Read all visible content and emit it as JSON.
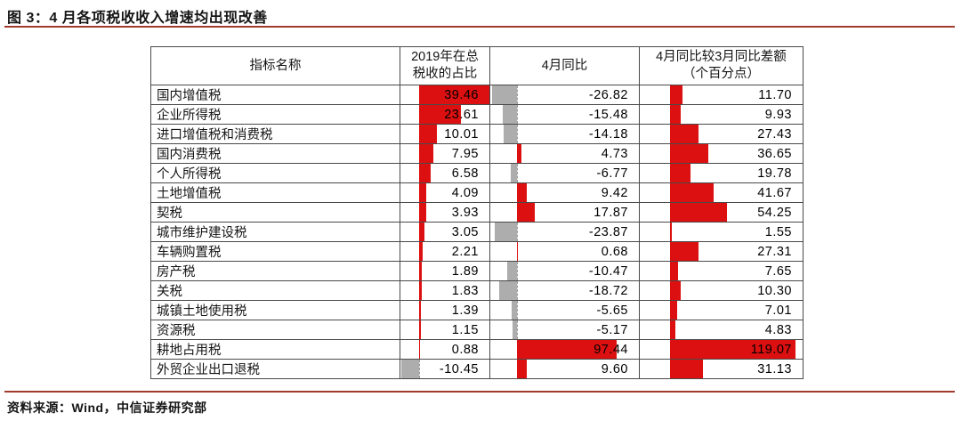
{
  "title": "图 3：4 月各项税收收入增速均出现改善",
  "source": "资料来源：Wind，中信证券研究部",
  "colors": {
    "accent_rule": "#A03B30",
    "bar_positive": "#DC1010",
    "bar_negative": "#ADADAD"
  },
  "chart_data": {
    "type": "table",
    "title": "图 3：4 月各项税收收入增速均出现改善",
    "columns": [
      "指标名称",
      "2019年在总税收的占比",
      "4月同比",
      "4月同比较3月同比差额（个百分点）"
    ],
    "rows": [
      {
        "name": "国内增值税",
        "share_2019": 39.46,
        "apr_yoy": -26.82,
        "diff_vs_mar": 11.7
      },
      {
        "name": "企业所得税",
        "share_2019": 23.61,
        "apr_yoy": -15.48,
        "diff_vs_mar": 9.93
      },
      {
        "name": "进口增值税和消费税",
        "share_2019": 10.01,
        "apr_yoy": -14.18,
        "diff_vs_mar": 27.43
      },
      {
        "name": "国内消费税",
        "share_2019": 7.95,
        "apr_yoy": 4.73,
        "diff_vs_mar": 36.65
      },
      {
        "name": "个人所得税",
        "share_2019": 6.58,
        "apr_yoy": -6.77,
        "diff_vs_mar": 19.78
      },
      {
        "name": "土地增值税",
        "share_2019": 4.09,
        "apr_yoy": 9.42,
        "diff_vs_mar": 41.67
      },
      {
        "name": "契税",
        "share_2019": 3.93,
        "apr_yoy": 17.87,
        "diff_vs_mar": 54.25
      },
      {
        "name": "城市维护建设税",
        "share_2019": 3.05,
        "apr_yoy": -23.87,
        "diff_vs_mar": 1.55
      },
      {
        "name": "车辆购置税",
        "share_2019": 2.21,
        "apr_yoy": 0.68,
        "diff_vs_mar": 27.31
      },
      {
        "name": "房产税",
        "share_2019": 1.89,
        "apr_yoy": -10.47,
        "diff_vs_mar": 7.65
      },
      {
        "name": "关税",
        "share_2019": 1.83,
        "apr_yoy": -18.72,
        "diff_vs_mar": 10.3
      },
      {
        "name": "城镇土地使用税",
        "share_2019": 1.39,
        "apr_yoy": -5.65,
        "diff_vs_mar": 7.01
      },
      {
        "name": "资源税",
        "share_2019": 1.15,
        "apr_yoy": -5.17,
        "diff_vs_mar": 4.83
      },
      {
        "name": "耕地占用税",
        "share_2019": 0.88,
        "apr_yoy": 97.44,
        "diff_vs_mar": 119.07
      },
      {
        "name": "外贸企业出口退税",
        "share_2019": -10.45,
        "apr_yoy": 9.6,
        "diff_vs_mar": 31.13
      }
    ],
    "bar_layout": {
      "share_2019": {
        "axis_frac": 0.207,
        "pos_max": 39.46,
        "pos_max_frac": 0.79,
        "neg_max": 10.45,
        "neg_max_frac": 0.2
      },
      "apr_yoy": {
        "axis_frac": 0.179,
        "pos_max": 97.44,
        "pos_max_frac": 0.672,
        "neg_max": 26.82,
        "neg_max_frac": 0.167
      },
      "diff_vs_mar": {
        "axis_frac": 0.185,
        "pos_max": 119.07,
        "pos_max_frac": 0.772,
        "neg_max": 0,
        "neg_max_frac": 0
      }
    }
  }
}
